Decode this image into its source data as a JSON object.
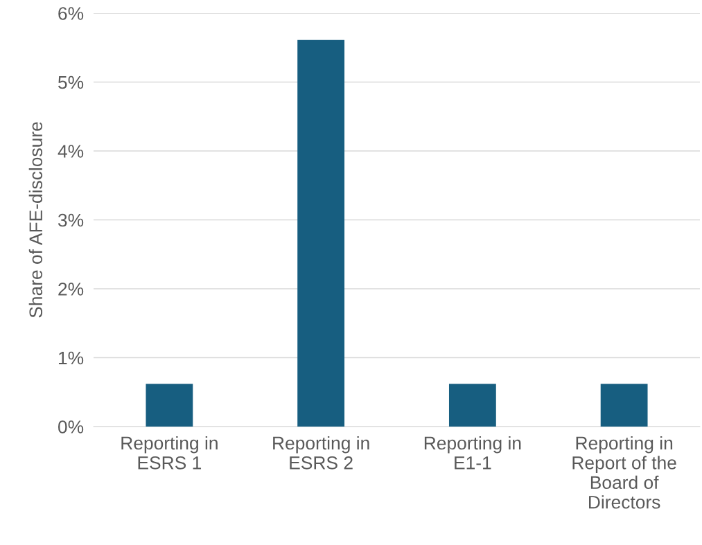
{
  "chart_data": {
    "type": "bar",
    "ylabel": "Share of AFE-disclosure",
    "categories": [
      "Reporting in ESRS 1",
      "Reporting in ESRS 2",
      "Reporting in E1-1",
      "Reporting in Report of the Board of Directors"
    ],
    "values": [
      0.62,
      5.61,
      0.62,
      0.62
    ],
    "color": "#175e80",
    "ylim": [
      0,
      6
    ],
    "yticks": [
      {
        "value": 0,
        "label": "0%"
      },
      {
        "value": 1,
        "label": "1%"
      },
      {
        "value": 2,
        "label": "2%"
      },
      {
        "value": 3,
        "label": "3%"
      },
      {
        "value": 4,
        "label": "4%"
      },
      {
        "value": 5,
        "label": "5%"
      },
      {
        "value": 6,
        "label": "6%"
      }
    ],
    "grid": "y"
  }
}
